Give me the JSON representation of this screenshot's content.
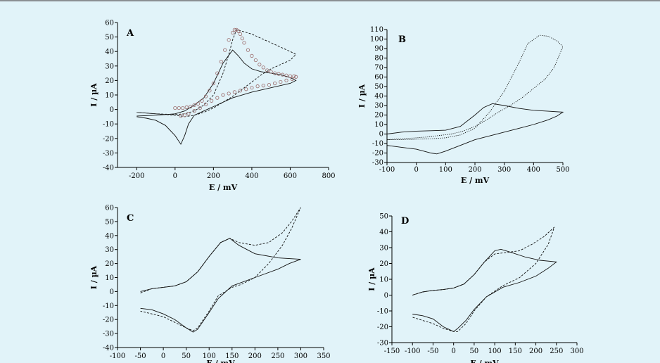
{
  "chart_data": [
    {
      "panel": "A",
      "type": "line",
      "xlabel": "E / mV",
      "ylabel": "I / µA",
      "xlim": [
        -300,
        800
      ],
      "ylim": [
        -40,
        60
      ],
      "xticks": [
        -200,
        0,
        200,
        400,
        600,
        800
      ],
      "yticks": [
        -40,
        -30,
        -20,
        -10,
        0,
        10,
        20,
        30,
        40,
        50,
        60
      ],
      "series": [
        {
          "style": "solid",
          "x": [
            -200,
            -100,
            0,
            50,
            100,
            150,
            200,
            250,
            300,
            330,
            360,
            400,
            450,
            500,
            550,
            600,
            630,
            600,
            500,
            400,
            300,
            200,
            150,
            100,
            70,
            50,
            30,
            0,
            -50,
            -100,
            -150,
            -200
          ],
          "y": [
            -4.5,
            -4,
            -3,
            -1,
            3,
            8,
            18,
            32,
            41,
            37,
            32,
            28,
            26,
            25,
            24,
            22,
            20,
            18,
            15,
            12,
            8,
            2,
            -1,
            -4,
            -10,
            -18,
            -24,
            -18,
            -11,
            -7.5,
            -6,
            -5
          ]
        },
        {
          "style": "dashed",
          "x": [
            -200,
            -100,
            0,
            50,
            100,
            150,
            200,
            250,
            280,
            300,
            320,
            350,
            400,
            450,
            500,
            550,
            600,
            630,
            600,
            550,
            500,
            450,
            400,
            350,
            300,
            250,
            200,
            150,
            100,
            50,
            30,
            0,
            -100,
            -200
          ],
          "y": [
            -2,
            -3,
            -3.5,
            -3,
            -1,
            3,
            10,
            25,
            38,
            48,
            55,
            54,
            52,
            49,
            46,
            43,
            40,
            38,
            34,
            31,
            28,
            24,
            19,
            14,
            9,
            5,
            1,
            -2,
            -4,
            -5,
            -4.5,
            -4,
            -3,
            -2
          ]
        },
        {
          "style": "circles",
          "x": [
            0,
            20,
            40,
            60,
            80,
            100,
            120,
            140,
            160,
            180,
            200,
            220,
            240,
            260,
            280,
            300,
            310,
            320,
            330,
            340,
            350,
            360,
            380,
            400,
            420,
            440,
            460,
            480,
            500,
            520,
            540,
            560,
            580,
            600,
            620,
            630,
            610,
            580,
            550,
            520,
            490,
            460,
            430,
            400,
            370,
            340,
            310,
            280,
            250,
            220,
            190,
            160,
            130,
            100,
            70,
            50,
            30
          ],
          "y": [
            1,
            1,
            1,
            1.5,
            2,
            3,
            4,
            6,
            9,
            13,
            18,
            25,
            33,
            41,
            48,
            53,
            55,
            55,
            54,
            52,
            49,
            46,
            41,
            37,
            34,
            31,
            29,
            27,
            26,
            25,
            24.5,
            24,
            23.5,
            23,
            23,
            22.5,
            21,
            20,
            19,
            18,
            17,
            16.5,
            16,
            15,
            14,
            13,
            12,
            11,
            10,
            8,
            6,
            3.5,
            1,
            -1,
            -3,
            -4,
            -4.5
          ]
        }
      ]
    },
    {
      "panel": "B",
      "type": "line",
      "xlabel": "E / mV",
      "ylabel": "I / µA",
      "xlim": [
        -100,
        500
      ],
      "ylim": [
        -30,
        110
      ],
      "xticks": [
        -100,
        0,
        100,
        200,
        300,
        400,
        500
      ],
      "yticks": [
        -30,
        -20,
        -10,
        0,
        10,
        20,
        30,
        40,
        50,
        60,
        70,
        80,
        90,
        100,
        110
      ],
      "series": [
        {
          "style": "solid",
          "x": [
            -100,
            -50,
            0,
            50,
            100,
            150,
            200,
            230,
            260,
            300,
            350,
            400,
            450,
            500,
            480,
            450,
            400,
            350,
            300,
            250,
            200,
            150,
            100,
            70,
            50,
            0,
            -50,
            -100
          ],
          "y": [
            0,
            2,
            3,
            3.5,
            4,
            8,
            20,
            28,
            32,
            30,
            27,
            25,
            24,
            23,
            19,
            15,
            10,
            6,
            2,
            -2,
            -6,
            -12,
            -18,
            -21,
            -20,
            -16,
            -14,
            -12
          ]
        },
        {
          "style": "dotted",
          "x": [
            -100,
            -50,
            0,
            50,
            100,
            150,
            200,
            250,
            300,
            350,
            380,
            420,
            450,
            480,
            500,
            470,
            440,
            400,
            360,
            320,
            280,
            240,
            200,
            160,
            120,
            80,
            40,
            0,
            -50,
            -100
          ],
          "y": [
            -6,
            -6,
            -5.5,
            -5,
            -4,
            -1,
            6,
            23,
            45,
            75,
            95,
            104,
            103,
            98,
            92,
            70,
            58,
            48,
            38,
            30,
            23,
            15,
            8,
            3,
            0,
            -1.5,
            -3,
            -4,
            -5,
            -6
          ]
        }
      ]
    },
    {
      "panel": "C",
      "type": "line",
      "xlabel": "E / mV",
      "ylabel": "I / µA",
      "xlim": [
        -100,
        350
      ],
      "ylim": [
        -40,
        60
      ],
      "xticks": [
        -100,
        -50,
        0,
        50,
        100,
        150,
        200,
        250,
        300,
        350
      ],
      "yticks": [
        -40,
        -30,
        -20,
        -10,
        0,
        10,
        20,
        30,
        40,
        50,
        60
      ],
      "series": [
        {
          "style": "solid",
          "x": [
            -50,
            -25,
            0,
            25,
            50,
            75,
            100,
            125,
            145,
            165,
            200,
            250,
            300,
            275,
            250,
            200,
            150,
            120,
            100,
            75,
            65,
            50,
            25,
            0,
            -25,
            -50
          ],
          "y": [
            0,
            2,
            3,
            4,
            7,
            14,
            25,
            35,
            38,
            33,
            27,
            24,
            23,
            20,
            16,
            10,
            4,
            -5,
            -15,
            -27,
            -29,
            -26,
            -20,
            -16,
            -13,
            -12
          ]
        },
        {
          "style": "dashed",
          "x": [
            -50,
            -25,
            0,
            25,
            50,
            75,
            100,
            125,
            145,
            165,
            200,
            230,
            260,
            280,
            300,
            280,
            260,
            230,
            200,
            170,
            150,
            120,
            100,
            75,
            65,
            50,
            25,
            0,
            -25,
            -50
          ],
          "y": [
            -1,
            2,
            3,
            4,
            7,
            14,
            25,
            35,
            38,
            35,
            33,
            35,
            42,
            50,
            60,
            45,
            33,
            20,
            10,
            5,
            3,
            -3,
            -14,
            -26,
            -28,
            -26,
            -22,
            -18,
            -16,
            -14
          ]
        }
      ]
    },
    {
      "panel": "D",
      "type": "line",
      "xlabel": "E / mV",
      "ylabel": "I / µA",
      "xlim": [
        -150,
        300
      ],
      "ylim": [
        -30,
        50
      ],
      "xticks": [
        -150,
        -100,
        -50,
        0,
        50,
        100,
        150,
        200,
        250,
        300
      ],
      "yticks": [
        -30,
        -20,
        -10,
        0,
        10,
        20,
        30,
        40,
        50
      ],
      "series": [
        {
          "style": "solid",
          "x": [
            -100,
            -75,
            -50,
            -25,
            0,
            25,
            50,
            75,
            100,
            115,
            140,
            175,
            210,
            250,
            230,
            200,
            160,
            120,
            80,
            50,
            30,
            10,
            0,
            -25,
            -50,
            -75,
            -100
          ],
          "y": [
            0,
            2,
            3,
            3.5,
            4.5,
            7,
            13,
            21,
            28,
            29,
            27,
            24,
            22,
            21,
            17,
            12,
            8,
            5,
            -1,
            -9,
            -16,
            -21,
            -23,
            -20,
            -15,
            -13,
            -12
          ]
        },
        {
          "style": "dashed",
          "x": [
            -100,
            -75,
            -50,
            -25,
            0,
            25,
            50,
            75,
            100,
            130,
            160,
            190,
            220,
            245,
            230,
            200,
            160,
            120,
            80,
            50,
            30,
            10,
            0,
            -25,
            -50,
            -75,
            -100
          ],
          "y": [
            0,
            2,
            3,
            3.5,
            4.5,
            7,
            13,
            21,
            26,
            27,
            28,
            32,
            37,
            43,
            32,
            20,
            11,
            6,
            -1,
            -10,
            -18,
            -23,
            -23,
            -21,
            -18,
            -16,
            -14
          ]
        }
      ]
    }
  ]
}
